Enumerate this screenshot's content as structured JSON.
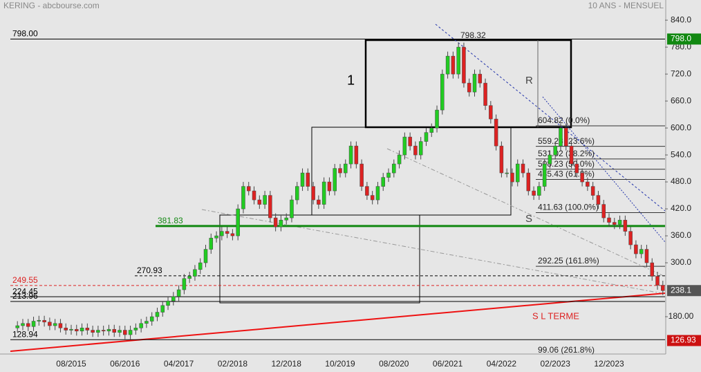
{
  "chart_data": {
    "type": "candlestick",
    "title": "KERING - abcbourse.com",
    "subtitle": "10 ANS - MENSUEL",
    "up_color": "#22cc22",
    "down_color": "#dd2222",
    "categories": [
      null,
      null,
      null,
      null,
      null,
      null,
      null,
      null,
      null,
      null,
      "08/2015",
      null,
      null,
      null,
      null,
      null,
      null,
      null,
      null,
      null,
      "06/2016",
      null,
      null,
      null,
      null,
      null,
      null,
      null,
      null,
      null,
      "04/2017",
      null,
      null,
      null,
      null,
      null,
      null,
      null,
      null,
      null,
      "02/2018",
      null,
      null,
      null,
      null,
      null,
      null,
      null,
      null,
      null,
      "12/2018",
      null,
      null,
      null,
      null,
      null,
      null,
      null,
      null,
      null,
      "10/2019",
      null,
      null,
      null,
      null,
      null,
      null,
      null,
      null,
      null,
      "08/2020",
      null,
      null,
      null,
      null,
      null,
      null,
      null,
      null,
      null,
      "06/2021",
      null,
      null,
      null,
      null,
      null,
      null,
      null,
      null,
      null,
      "04/2022",
      null,
      null,
      null,
      null,
      null,
      null,
      null,
      null,
      null,
      "02/2023",
      null,
      null,
      null,
      null,
      null,
      null,
      null,
      null,
      null,
      "12/2023",
      null,
      null,
      null,
      null,
      null,
      null,
      null,
      null,
      null,
      null
    ],
    "open": [
      155,
      160,
      165,
      158,
      170,
      172,
      168,
      160,
      165,
      155,
      150,
      152,
      148,
      155,
      150,
      145,
      150,
      148,
      152,
      145,
      150,
      140,
      150,
      155,
      165,
      170,
      180,
      190,
      205,
      215,
      225,
      240,
      265,
      270,
      285,
      300,
      330,
      355,
      360,
      370,
      365,
      360,
      420,
      470,
      460,
      440,
      430,
      450,
      400,
      380,
      395,
      400,
      440,
      470,
      500,
      470,
      440,
      430,
      480,
      460,
      510,
      500,
      520,
      560,
      520,
      470,
      450,
      440,
      470,
      490,
      500,
      520,
      540,
      580,
      560,
      540,
      570,
      590,
      600,
      640,
      720,
      760,
      720,
      780,
      700,
      680,
      720,
      700,
      650,
      620,
      560,
      500,
      500,
      480,
      520,
      500,
      460,
      450,
      470,
      520,
      540,
      560,
      600,
      560,
      520,
      500,
      480,
      470,
      450,
      430,
      400,
      390,
      385,
      395,
      370,
      340,
      320,
      330,
      300,
      270,
      250
    ],
    "high": [
      170,
      175,
      175,
      180,
      182,
      182,
      178,
      175,
      175,
      165,
      162,
      162,
      165,
      165,
      160,
      160,
      160,
      162,
      162,
      160,
      160,
      160,
      165,
      175,
      180,
      190,
      200,
      215,
      225,
      235,
      250,
      275,
      280,
      295,
      310,
      340,
      365,
      370,
      380,
      380,
      375,
      430,
      480,
      480,
      470,
      450,
      460,
      460,
      410,
      405,
      410,
      450,
      480,
      510,
      510,
      480,
      450,
      490,
      490,
      520,
      520,
      530,
      570,
      570,
      530,
      480,
      460,
      480,
      500,
      510,
      530,
      550,
      590,
      590,
      570,
      580,
      600,
      610,
      650,
      730,
      770,
      770,
      790,
      790,
      710,
      730,
      730,
      710,
      660,
      630,
      570,
      510,
      510,
      530,
      530,
      510,
      470,
      480,
      530,
      550,
      570,
      610,
      610,
      570,
      530,
      510,
      490,
      480,
      460,
      440,
      410,
      400,
      405,
      405,
      380,
      350,
      340,
      340,
      310,
      280,
      260
    ],
    "low": [
      145,
      150,
      148,
      148,
      160,
      158,
      150,
      150,
      145,
      140,
      140,
      138,
      138,
      140,
      135,
      135,
      138,
      138,
      135,
      135,
      130,
      130,
      140,
      145,
      155,
      160,
      170,
      180,
      195,
      205,
      215,
      230,
      255,
      260,
      275,
      290,
      320,
      345,
      350,
      355,
      350,
      350,
      410,
      450,
      430,
      420,
      420,
      390,
      370,
      370,
      385,
      390,
      430,
      460,
      460,
      430,
      420,
      420,
      450,
      450,
      490,
      490,
      510,
      510,
      460,
      440,
      430,
      430,
      460,
      480,
      490,
      510,
      530,
      550,
      530,
      530,
      560,
      580,
      590,
      630,
      710,
      710,
      710,
      690,
      670,
      670,
      690,
      640,
      610,
      550,
      490,
      490,
      470,
      470,
      490,
      450,
      440,
      440,
      460,
      510,
      530,
      550,
      550,
      510,
      490,
      470,
      460,
      440,
      420,
      390,
      380,
      375,
      375,
      360,
      330,
      310,
      310,
      290,
      260,
      240,
      228
    ],
    "close": [
      160,
      165,
      158,
      170,
      172,
      168,
      160,
      165,
      155,
      150,
      152,
      148,
      155,
      150,
      145,
      150,
      148,
      152,
      145,
      150,
      140,
      150,
      155,
      165,
      170,
      180,
      190,
      205,
      215,
      225,
      240,
      265,
      270,
      285,
      300,
      330,
      355,
      360,
      370,
      365,
      360,
      420,
      470,
      460,
      440,
      430,
      450,
      400,
      380,
      395,
      400,
      440,
      470,
      500,
      470,
      440,
      430,
      480,
      460,
      510,
      500,
      520,
      560,
      520,
      470,
      450,
      440,
      470,
      490,
      500,
      520,
      540,
      580,
      560,
      540,
      570,
      590,
      600,
      640,
      720,
      760,
      720,
      780,
      700,
      680,
      720,
      700,
      650,
      620,
      560,
      500,
      500,
      480,
      520,
      500,
      460,
      450,
      470,
      520,
      540,
      560,
      600,
      560,
      520,
      500,
      480,
      470,
      450,
      430,
      400,
      390,
      385,
      395,
      370,
      340,
      320,
      330,
      300,
      270,
      250,
      238
    ],
    "ylim": [
      100,
      851
    ],
    "yticks": [
      {
        "value": 840,
        "label": "840.0"
      },
      {
        "value": 780,
        "label": "780.0"
      },
      {
        "value": 720,
        "label": "720.0"
      },
      {
        "value": 660,
        "label": "660.0"
      },
      {
        "value": 600,
        "label": "600.0"
      },
      {
        "value": 540,
        "label": "540.0"
      },
      {
        "value": 480,
        "label": "480.0"
      },
      {
        "value": 420,
        "label": "420.0"
      },
      {
        "value": 360,
        "label": "360.0"
      },
      {
        "value": 300,
        "label": "300.0"
      },
      {
        "value": 180,
        "label": "180.00"
      }
    ],
    "levels": [
      {
        "value": 798,
        "label": "798.00",
        "color": "#000000"
      },
      {
        "value": 381.83,
        "label": "381.83",
        "color": "#118811"
      },
      {
        "value": 270.93,
        "label": "270.93",
        "color": "#000000"
      },
      {
        "value": 249.55,
        "label": "249.55",
        "color": "#dd2222"
      },
      {
        "value": 224.45,
        "label": "224.45",
        "color": "#000000"
      },
      {
        "value": 213.96,
        "label": "213.96",
        "color": "#000000"
      },
      {
        "value": 128.94,
        "label": "128.94",
        "color": "#000000"
      }
    ],
    "fib": [
      {
        "value": 604.82,
        "label": "604.82  (0.0%)"
      },
      {
        "value": 559.23,
        "label": "559.23  (23.6%)"
      },
      {
        "value": 531.02,
        "label": "531.02  (38.2%)"
      },
      {
        "value": 508.23,
        "label": "508.23  (50.0%)"
      },
      {
        "value": 485.43,
        "label": "485.43  (61.8%)"
      },
      {
        "value": 411.63,
        "label": "411.63  (100.0%)"
      },
      {
        "value": 292.25,
        "label": "292.25  (161.8%)"
      },
      {
        "value": 99.06,
        "label": "99.06  (261.8%)"
      }
    ],
    "badges": [
      {
        "value": 798,
        "label": "798.0",
        "color": "#118811"
      },
      {
        "value": 238.1,
        "label": "238.1",
        "color": "#555555"
      },
      {
        "value": 126.93,
        "label": "126.93",
        "color": "#cc1111"
      }
    ],
    "annotations": [
      "1",
      "R",
      "S",
      "S L TERME",
      "798.32"
    ]
  }
}
